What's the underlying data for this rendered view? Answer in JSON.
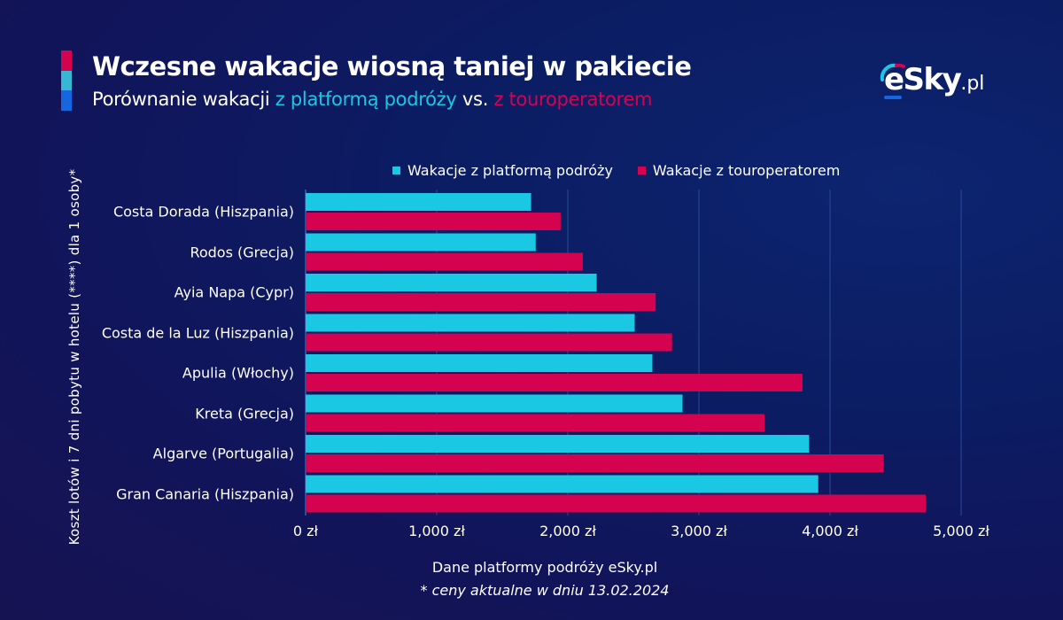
{
  "header": {
    "title": "Wczesne wakacje wiosną taniej w pakiecie",
    "subtitle_prefix": "Porównanie wakacji ",
    "subtitle_platform": "z platformą podróży",
    "subtitle_vs": " vs. ",
    "subtitle_operator": "z touroperatorem",
    "accent_colors": [
      "#d4024f",
      "#1bbfd6",
      "#1666e0"
    ]
  },
  "logo": {
    "main": "eSky",
    "suffix": ".pl"
  },
  "footer": {
    "source": "Dane platformy podróży eSky.pl",
    "note": "* ceny aktualne w dniu 13.02.2024"
  },
  "colors": {
    "platform": "#1bc8e3",
    "operator": "#d4024f"
  },
  "chart_data": {
    "type": "bar",
    "orientation": "horizontal",
    "title": "Wczesne wakacje wiosną taniej w pakiecie",
    "ylabel": "Koszt lotów i 7 dni pobytu w hotelu (****) dla 1 osoby*",
    "xlabel": "",
    "xlim": [
      0,
      5000
    ],
    "xticks": [
      0,
      1000,
      2000,
      3000,
      4000,
      5000
    ],
    "xtick_labels": [
      "0 zł",
      "1,000 zł",
      "2,000 zł",
      "3,000 zł",
      "4,000 zł",
      "5,000 zł"
    ],
    "grid": true,
    "legend_position": "top",
    "categories": [
      "Costa Dorada (Hiszpania)",
      "Rodos (Grecja)",
      "Ayia Napa (Cypr)",
      "Costa de la Luz (Hiszpania)",
      "Apulia (Włochy)",
      "Kreta (Grecja)",
      "Algarve (Portugalia)",
      "Gran Canaria (Hiszpania)"
    ],
    "series": [
      {
        "name": "Wakacje z platformą podróży",
        "color": "#1bc8e3",
        "values": [
          1720,
          1755,
          2220,
          2510,
          2645,
          2875,
          3840,
          3910
        ]
      },
      {
        "name": "Wakacje z touroperatorem",
        "color": "#d4024f",
        "values": [
          1945,
          2115,
          2670,
          2795,
          3790,
          3500,
          4410,
          4730
        ]
      }
    ]
  }
}
